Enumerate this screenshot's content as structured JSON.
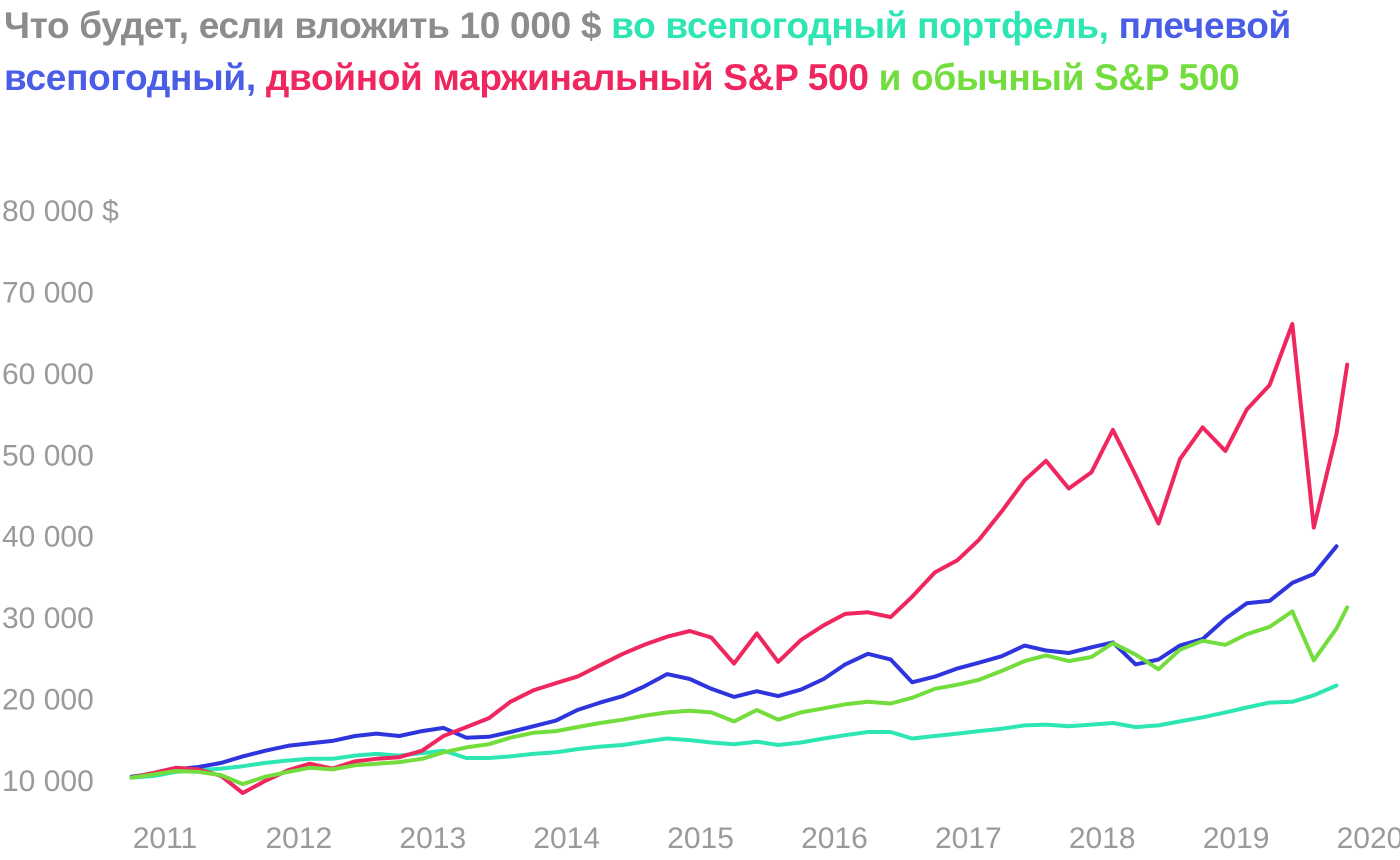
{
  "title": {
    "parts": [
      {
        "text": "Что будет, если вложить 10 000 $ ",
        "color": "#8c8c8c"
      },
      {
        "text": "во всепогодный портфель, ",
        "color": "#2ee6b4"
      },
      {
        "text": "плечевой всепогодный, ",
        "color": "#4a5de6"
      },
      {
        "text": "двойной маржинальный S&P 500 ",
        "color": "#f0265e"
      },
      {
        "text": "и обычный S&P 500",
        "color": "#72dd3d"
      }
    ]
  },
  "chart_data": {
    "type": "line",
    "y_tick_labels": [
      "80 000 $",
      "70 000",
      "60 000",
      "50 000",
      "40 000",
      "30 000",
      "20 000",
      "10 000"
    ],
    "y_ticks": [
      80000,
      70000,
      60000,
      50000,
      40000,
      30000,
      20000,
      10000
    ],
    "x_tick_labels": [
      "2011",
      "2012",
      "2013",
      "2014",
      "2015",
      "2016",
      "2017",
      "2018",
      "2019",
      "2020"
    ],
    "ylim": [
      10000,
      80000
    ],
    "xlim": [
      2011,
      2020
    ],
    "grid": false,
    "legend": "none",
    "series": [
      {
        "key": "all_weather",
        "color": "#2ee6b4",
        "points": [
          [
            2010.75,
            10300
          ],
          [
            2010.92,
            10500
          ],
          [
            2011.08,
            11000
          ],
          [
            2011.25,
            11200
          ],
          [
            2011.42,
            11400
          ],
          [
            2011.58,
            11700
          ],
          [
            2011.75,
            12100
          ],
          [
            2011.92,
            12400
          ],
          [
            2012.08,
            12600
          ],
          [
            2012.25,
            12600
          ],
          [
            2012.42,
            13000
          ],
          [
            2012.58,
            13200
          ],
          [
            2012.75,
            13000
          ],
          [
            2012.92,
            13300
          ],
          [
            2013.08,
            13600
          ],
          [
            2013.25,
            12700
          ],
          [
            2013.42,
            12700
          ],
          [
            2013.58,
            12900
          ],
          [
            2013.75,
            13200
          ],
          [
            2013.92,
            13400
          ],
          [
            2014.08,
            13800
          ],
          [
            2014.25,
            14100
          ],
          [
            2014.42,
            14300
          ],
          [
            2014.58,
            14700
          ],
          [
            2014.75,
            15100
          ],
          [
            2014.92,
            14900
          ],
          [
            2015.08,
            14600
          ],
          [
            2015.25,
            14400
          ],
          [
            2015.42,
            14700
          ],
          [
            2015.58,
            14300
          ],
          [
            2015.75,
            14600
          ],
          [
            2015.92,
            15100
          ],
          [
            2016.08,
            15500
          ],
          [
            2016.25,
            15900
          ],
          [
            2016.42,
            15900
          ],
          [
            2016.58,
            15100
          ],
          [
            2016.75,
            15400
          ],
          [
            2016.92,
            15700
          ],
          [
            2017.08,
            16000
          ],
          [
            2017.25,
            16300
          ],
          [
            2017.42,
            16700
          ],
          [
            2017.58,
            16800
          ],
          [
            2017.75,
            16600
          ],
          [
            2017.92,
            16800
          ],
          [
            2018.08,
            17000
          ],
          [
            2018.25,
            16500
          ],
          [
            2018.42,
            16700
          ],
          [
            2018.58,
            17200
          ],
          [
            2018.75,
            17700
          ],
          [
            2018.92,
            18300
          ],
          [
            2019.08,
            18900
          ],
          [
            2019.25,
            19500
          ],
          [
            2019.42,
            19600
          ],
          [
            2019.58,
            20400
          ],
          [
            2019.75,
            21600
          ]
        ]
      },
      {
        "key": "leveraged_all_weather",
        "color": "#2f35dc",
        "points": [
          [
            2010.75,
            10400
          ],
          [
            2010.92,
            10800
          ],
          [
            2011.08,
            11300
          ],
          [
            2011.25,
            11600
          ],
          [
            2011.42,
            12100
          ],
          [
            2011.58,
            12900
          ],
          [
            2011.75,
            13600
          ],
          [
            2011.92,
            14200
          ],
          [
            2012.08,
            14500
          ],
          [
            2012.25,
            14800
          ],
          [
            2012.42,
            15400
          ],
          [
            2012.58,
            15700
          ],
          [
            2012.75,
            15400
          ],
          [
            2012.92,
            16000
          ],
          [
            2013.08,
            16400
          ],
          [
            2013.25,
            15200
          ],
          [
            2013.42,
            15300
          ],
          [
            2013.58,
            15900
          ],
          [
            2013.75,
            16600
          ],
          [
            2013.92,
            17300
          ],
          [
            2014.08,
            18600
          ],
          [
            2014.25,
            19500
          ],
          [
            2014.42,
            20300
          ],
          [
            2014.58,
            21500
          ],
          [
            2014.75,
            23000
          ],
          [
            2014.92,
            22400
          ],
          [
            2015.08,
            21200
          ],
          [
            2015.25,
            20200
          ],
          [
            2015.42,
            20900
          ],
          [
            2015.58,
            20300
          ],
          [
            2015.75,
            21100
          ],
          [
            2015.92,
            22400
          ],
          [
            2016.08,
            24200
          ],
          [
            2016.25,
            25500
          ],
          [
            2016.42,
            24800
          ],
          [
            2016.58,
            22000
          ],
          [
            2016.75,
            22700
          ],
          [
            2016.92,
            23700
          ],
          [
            2017.08,
            24400
          ],
          [
            2017.25,
            25200
          ],
          [
            2017.42,
            26500
          ],
          [
            2017.58,
            25900
          ],
          [
            2017.75,
            25600
          ],
          [
            2017.92,
            26300
          ],
          [
            2018.08,
            26900
          ],
          [
            2018.25,
            24200
          ],
          [
            2018.42,
            24800
          ],
          [
            2018.58,
            26500
          ],
          [
            2018.75,
            27300
          ],
          [
            2018.92,
            29800
          ],
          [
            2019.08,
            31700
          ],
          [
            2019.25,
            32000
          ],
          [
            2019.42,
            34200
          ],
          [
            2019.58,
            35300
          ],
          [
            2019.75,
            38700
          ]
        ]
      },
      {
        "key": "double_margin_sp500",
        "color": "#f0265e",
        "points": [
          [
            2010.75,
            10300
          ],
          [
            2010.92,
            10900
          ],
          [
            2011.08,
            11500
          ],
          [
            2011.25,
            11300
          ],
          [
            2011.42,
            10500
          ],
          [
            2011.58,
            8400
          ],
          [
            2011.75,
            9900
          ],
          [
            2011.92,
            11200
          ],
          [
            2012.08,
            12000
          ],
          [
            2012.25,
            11400
          ],
          [
            2012.42,
            12300
          ],
          [
            2012.58,
            12600
          ],
          [
            2012.75,
            12800
          ],
          [
            2012.92,
            13600
          ],
          [
            2013.08,
            15400
          ],
          [
            2013.25,
            16500
          ],
          [
            2013.42,
            17600
          ],
          [
            2013.58,
            19600
          ],
          [
            2013.75,
            21000
          ],
          [
            2013.92,
            21900
          ],
          [
            2014.08,
            22700
          ],
          [
            2014.25,
            24100
          ],
          [
            2014.42,
            25500
          ],
          [
            2014.58,
            26600
          ],
          [
            2014.75,
            27600
          ],
          [
            2014.92,
            28300
          ],
          [
            2015.08,
            27500
          ],
          [
            2015.25,
            24300
          ],
          [
            2015.42,
            28000
          ],
          [
            2015.58,
            24500
          ],
          [
            2015.75,
            27200
          ],
          [
            2015.92,
            29000
          ],
          [
            2016.08,
            30400
          ],
          [
            2016.25,
            30600
          ],
          [
            2016.42,
            30000
          ],
          [
            2016.58,
            32500
          ],
          [
            2016.75,
            35500
          ],
          [
            2016.92,
            37000
          ],
          [
            2017.08,
            39500
          ],
          [
            2017.25,
            43000
          ],
          [
            2017.42,
            46800
          ],
          [
            2017.58,
            49200
          ],
          [
            2017.75,
            45800
          ],
          [
            2017.92,
            47800
          ],
          [
            2018.08,
            53000
          ],
          [
            2018.25,
            47400
          ],
          [
            2018.42,
            41500
          ],
          [
            2018.58,
            49400
          ],
          [
            2018.75,
            53300
          ],
          [
            2018.92,
            50400
          ],
          [
            2019.08,
            55500
          ],
          [
            2019.25,
            58500
          ],
          [
            2019.42,
            66000
          ],
          [
            2019.58,
            41000
          ],
          [
            2019.75,
            52500
          ],
          [
            2019.83,
            61000
          ]
        ]
      },
      {
        "key": "sp500",
        "color": "#72dd3d",
        "points": [
          [
            2010.75,
            10300
          ],
          [
            2010.92,
            10700
          ],
          [
            2011.08,
            11100
          ],
          [
            2011.25,
            11000
          ],
          [
            2011.42,
            10600
          ],
          [
            2011.58,
            9500
          ],
          [
            2011.75,
            10400
          ],
          [
            2011.92,
            11000
          ],
          [
            2012.08,
            11500
          ],
          [
            2012.25,
            11300
          ],
          [
            2012.42,
            11800
          ],
          [
            2012.58,
            12000
          ],
          [
            2012.75,
            12200
          ],
          [
            2012.92,
            12600
          ],
          [
            2013.08,
            13400
          ],
          [
            2013.25,
            14000
          ],
          [
            2013.42,
            14400
          ],
          [
            2013.58,
            15200
          ],
          [
            2013.75,
            15800
          ],
          [
            2013.92,
            16000
          ],
          [
            2014.08,
            16500
          ],
          [
            2014.25,
            17000
          ],
          [
            2014.42,
            17400
          ],
          [
            2014.58,
            17900
          ],
          [
            2014.75,
            18300
          ],
          [
            2014.92,
            18500
          ],
          [
            2015.08,
            18300
          ],
          [
            2015.25,
            17200
          ],
          [
            2015.42,
            18600
          ],
          [
            2015.58,
            17400
          ],
          [
            2015.75,
            18300
          ],
          [
            2015.92,
            18800
          ],
          [
            2016.08,
            19300
          ],
          [
            2016.25,
            19600
          ],
          [
            2016.42,
            19400
          ],
          [
            2016.58,
            20100
          ],
          [
            2016.75,
            21200
          ],
          [
            2016.92,
            21700
          ],
          [
            2017.08,
            22300
          ],
          [
            2017.25,
            23400
          ],
          [
            2017.42,
            24600
          ],
          [
            2017.58,
            25300
          ],
          [
            2017.75,
            24600
          ],
          [
            2017.92,
            25100
          ],
          [
            2018.08,
            26800
          ],
          [
            2018.25,
            25400
          ],
          [
            2018.42,
            23600
          ],
          [
            2018.58,
            26000
          ],
          [
            2018.75,
            27100
          ],
          [
            2018.92,
            26600
          ],
          [
            2019.08,
            27900
          ],
          [
            2019.25,
            28800
          ],
          [
            2019.42,
            30700
          ],
          [
            2019.58,
            24700
          ],
          [
            2019.75,
            28600
          ],
          [
            2019.83,
            31200
          ]
        ]
      }
    ]
  }
}
